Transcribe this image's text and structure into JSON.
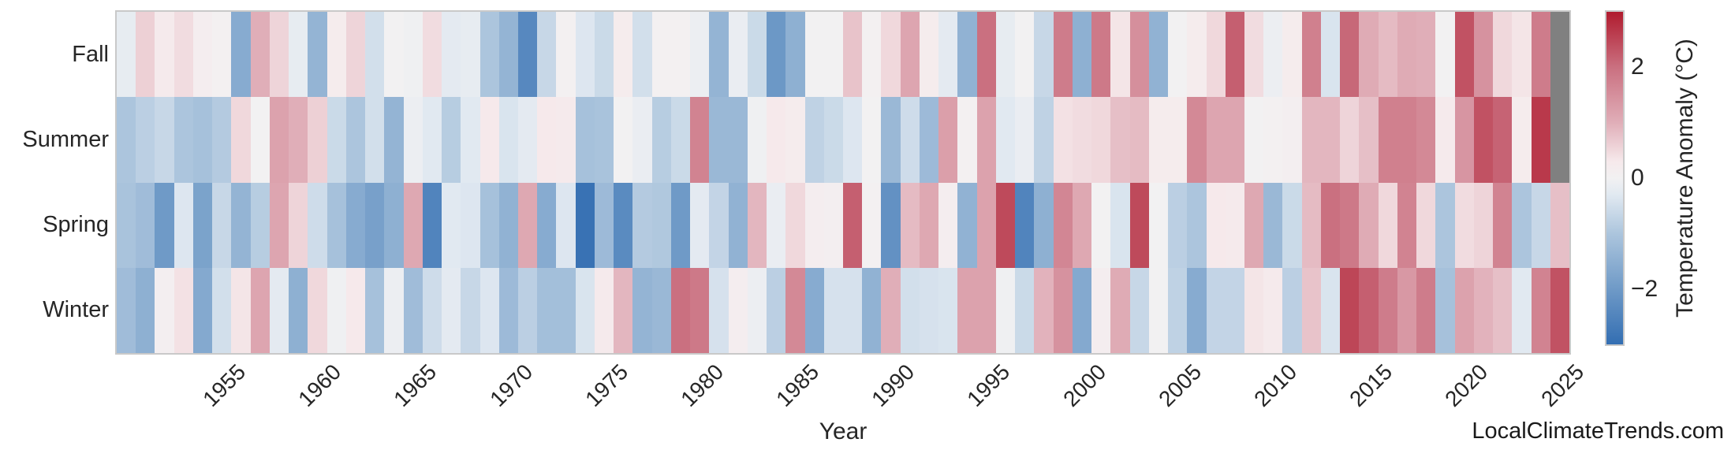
{
  "page": {
    "background": "#ffffff",
    "watermark": "LocalClimateTrends.com"
  },
  "chart_data": {
    "type": "heatmap",
    "title": "",
    "xlabel": "Year",
    "ylabel": "",
    "legend_position": "right-colorbar",
    "grid": false,
    "rows": [
      "Fall",
      "Summer",
      "Spring",
      "Winter"
    ],
    "years": [
      1950,
      1951,
      1952,
      1953,
      1954,
      1955,
      1956,
      1957,
      1958,
      1959,
      1960,
      1961,
      1962,
      1963,
      1964,
      1965,
      1966,
      1967,
      1968,
      1969,
      1970,
      1971,
      1972,
      1973,
      1974,
      1975,
      1976,
      1977,
      1978,
      1979,
      1980,
      1981,
      1982,
      1983,
      1984,
      1985,
      1986,
      1987,
      1988,
      1989,
      1990,
      1991,
      1992,
      1993,
      1994,
      1995,
      1996,
      1997,
      1998,
      1999,
      2000,
      2001,
      2002,
      2003,
      2004,
      2005,
      2006,
      2007,
      2008,
      2009,
      2010,
      2011,
      2012,
      2013,
      2014,
      2015,
      2016,
      2017,
      2018,
      2019,
      2020,
      2021,
      2022,
      2023,
      2024,
      2025
    ],
    "x_ticks": [
      1955,
      1960,
      1965,
      1970,
      1975,
      1980,
      1985,
      1990,
      1995,
      2000,
      2005,
      2010,
      2015,
      2020,
      2025
    ],
    "series": [
      {
        "name": "Fall",
        "values": [
          -0.2,
          0.6,
          0.25,
          0.45,
          0.15,
          0.05,
          -1.6,
          1.0,
          0.55,
          -0.2,
          -1.4,
          0.2,
          0.55,
          -0.5,
          0.0,
          -0.05,
          0.45,
          -0.25,
          -0.2,
          -1.0,
          -1.4,
          -2.4,
          -0.65,
          0.05,
          -0.35,
          -0.6,
          0.2,
          -0.5,
          0.05,
          0.05,
          -0.1,
          -1.4,
          -0.15,
          -0.6,
          -2.05,
          -1.5,
          0.0,
          0.0,
          0.75,
          0.05,
          0.5,
          1.15,
          0.2,
          -0.25,
          -1.45,
          2.0,
          -0.2,
          0.0,
          -0.65,
          1.8,
          -1.5,
          1.85,
          0.35,
          1.5,
          -1.45,
          0.0,
          0.2,
          0.5,
          2.2,
          0.45,
          -0.1,
          0.2,
          1.75,
          -0.4,
          2.1,
          1.05,
          0.85,
          1.05,
          1.0,
          0.0,
          2.35,
          1.45,
          0.5,
          0.35,
          1.8,
          null
        ]
      },
      {
        "name": "Summer",
        "values": [
          -1.0,
          -0.8,
          -0.65,
          -1.0,
          -1.1,
          -0.9,
          0.5,
          0.0,
          1.2,
          1.0,
          0.6,
          -0.6,
          -1.0,
          -0.5,
          -1.4,
          -0.1,
          -0.3,
          -0.85,
          -0.3,
          0.3,
          -0.4,
          -0.25,
          0.3,
          0.25,
          -1.1,
          -1.05,
          0.0,
          -0.15,
          -0.85,
          -0.6,
          1.7,
          -1.3,
          -1.3,
          -0.05,
          0.3,
          0.2,
          -0.75,
          -0.6,
          -0.35,
          0.0,
          -1.3,
          -0.55,
          -1.25,
          1.25,
          0.05,
          1.2,
          -0.3,
          -0.15,
          -0.75,
          0.4,
          0.45,
          0.5,
          0.8,
          0.85,
          0.2,
          0.2,
          1.6,
          1.15,
          1.15,
          0.0,
          0.05,
          0.1,
          0.9,
          0.9,
          0.55,
          0.8,
          1.75,
          1.75,
          1.6,
          0.25,
          1.4,
          2.35,
          2.15,
          0.2,
          2.65,
          null
        ]
      },
      {
        "name": "Spring",
        "values": [
          -1.05,
          -1.2,
          -2.0,
          -0.35,
          -1.8,
          -0.65,
          -1.4,
          -0.85,
          1.15,
          0.55,
          -0.55,
          -1.1,
          -1.6,
          -1.85,
          -1.5,
          1.1,
          -2.5,
          -0.3,
          -0.35,
          -1.1,
          -1.45,
          1.1,
          -1.6,
          -0.35,
          -2.9,
          -1.25,
          -2.35,
          -0.9,
          -0.95,
          -2.0,
          -0.25,
          -0.7,
          -1.45,
          0.9,
          -0.15,
          0.5,
          0.15,
          0.1,
          2.2,
          0.05,
          -2.2,
          0.85,
          1.1,
          0.15,
          -1.45,
          1.2,
          2.45,
          -2.5,
          -1.5,
          1.65,
          1.1,
          0.0,
          -0.4,
          2.45,
          0.0,
          -0.8,
          -1.0,
          0.3,
          0.25,
          1.1,
          -1.3,
          -0.6,
          0.85,
          2.0,
          1.85,
          1.05,
          0.5,
          1.7,
          0.5,
          -1.0,
          0.45,
          0.55,
          1.7,
          -1.0,
          -0.65,
          0.8
        ]
      },
      {
        "name": "Winter",
        "values": [
          -1.2,
          -1.5,
          0.1,
          0.4,
          -1.65,
          -0.5,
          0.35,
          1.15,
          -0.25,
          -1.5,
          0.5,
          -0.05,
          0.3,
          -1.1,
          -0.1,
          -1.2,
          -0.55,
          -0.25,
          -0.65,
          -0.35,
          -1.25,
          -0.8,
          -1.15,
          -1.15,
          -0.4,
          0.25,
          0.9,
          -1.4,
          -1.3,
          2.0,
          1.85,
          -0.45,
          0.15,
          -0.1,
          -0.8,
          1.6,
          -1.6,
          -0.45,
          -0.45,
          -1.45,
          1.0,
          -0.5,
          -0.45,
          -0.4,
          1.2,
          1.2,
          -0.05,
          -0.6,
          0.95,
          1.45,
          -1.65,
          0.15,
          1.05,
          -0.65,
          0.0,
          -0.75,
          -1.6,
          -0.7,
          -0.7,
          0.35,
          0.25,
          -0.8,
          0.75,
          -0.4,
          2.5,
          2.2,
          1.8,
          1.35,
          1.8,
          -1.1,
          1.2,
          0.95,
          0.8,
          -0.3,
          1.7,
          2.35
        ]
      }
    ],
    "missing_value_color": "#808080",
    "colorbar": {
      "label": "Temperature Anomaly (°C)",
      "vmin": -3,
      "vmax": 3,
      "ticks": [
        {
          "value": 2,
          "label": "2"
        },
        {
          "value": 0,
          "label": "0"
        },
        {
          "value": -2,
          "label": "−2"
        }
      ],
      "colormap_stops": [
        {
          "value": -3.0,
          "color": "#336eb2"
        },
        {
          "value": -2.0,
          "color": "#6f9ac7"
        },
        {
          "value": -1.0,
          "color": "#acc5dd"
        },
        {
          "value": -0.3,
          "color": "#e1e9f1"
        },
        {
          "value": 0.0,
          "color": "#f2f1f2"
        },
        {
          "value": 0.3,
          "color": "#f6e9eb"
        },
        {
          "value": 1.0,
          "color": "#e0aeb8"
        },
        {
          "value": 2.0,
          "color": "#ca7080"
        },
        {
          "value": 3.0,
          "color": "#b01b2e"
        }
      ]
    }
  }
}
